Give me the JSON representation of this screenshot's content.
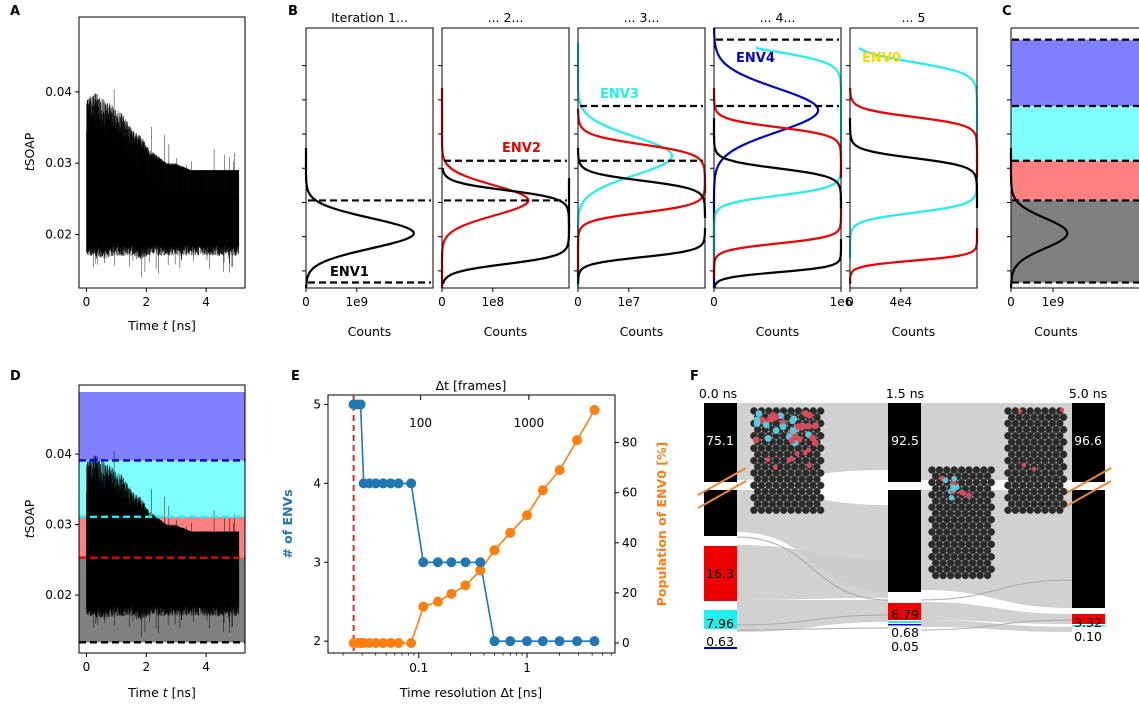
{
  "panel_labels": {
    "A": "A",
    "B": "B",
    "C": "C",
    "D": "D",
    "E": "E",
    "F": "F"
  },
  "colors": {
    "ENV0": "#FFD700",
    "ENV1": "#000000",
    "ENV2": "#EE0000",
    "ENV3": "#22EEEE",
    "ENV4": "#0000CC",
    "band_env4": "#8080FF",
    "band_env3": "#80FFFF",
    "band_env2": "#FF8080",
    "band_env1": "#808080",
    "hist": "#999999",
    "blue_series": "#1F77B4",
    "orange_series": "#FF7F0E",
    "dashed_red": "#EE2222",
    "slash": "#E8893A",
    "flow": "#CCCCCC"
  },
  "chart_data": [
    {
      "panel": "A",
      "type": "line",
      "xlabel_pre": "Time ",
      "xlabel_var": "t",
      "xlabel_post": " [ns]",
      "ylabel_var": "t",
      "ylabel_post": "SOAP",
      "xlim": [
        -0.25,
        5.3
      ],
      "ylim": [
        0.0125,
        0.0505
      ],
      "xticks": [
        0,
        2,
        4
      ],
      "xtick_labels": [
        "0",
        "2",
        "4"
      ],
      "yticks": [
        0.02,
        0.03,
        0.04
      ],
      "ytick_labels": [
        "0.02",
        "0.03",
        "0.04"
      ],
      "signal": {
        "t": [
          0,
          0.3,
          0.6,
          0.9,
          1.2,
          1.5,
          1.8,
          2.1,
          2.4,
          2.7,
          3,
          3.5,
          4,
          4.5,
          5.1
        ],
        "upper": [
          0.039,
          0.04,
          0.039,
          0.038,
          0.037,
          0.035,
          0.034,
          0.032,
          0.031,
          0.03,
          0.03,
          0.029,
          0.029,
          0.029,
          0.029
        ],
        "lower": [
          0.017,
          0.017,
          0.0165,
          0.017,
          0.017,
          0.017,
          0.0165,
          0.017,
          0.017,
          0.017,
          0.017,
          0.017,
          0.017,
          0.017,
          0.017
        ]
      }
    },
    {
      "panel": "B",
      "type": "histogram",
      "xlabel": "Counts",
      "ylim": [
        0.0125,
        0.0505
      ],
      "subplots": [
        {
          "title": "Iteration 1...",
          "xtick_labels": [
            "0",
            "1e9"
          ],
          "env_label": "ENV1",
          "env_color": "ENV1",
          "dashes": [
            0.0253,
            0.0133
          ]
        },
        {
          "title": "... 2...",
          "xtick_labels": [
            "0",
            "1e8"
          ],
          "env_label": "ENV2",
          "env_color": "ENV2",
          "dashes": [
            0.0311,
            0.0253
          ]
        },
        {
          "title": "... 3...",
          "xtick_labels": [
            "0",
            "1e7"
          ],
          "env_label": "ENV3",
          "env_color": "ENV3",
          "dashes": [
            0.0391,
            0.0311
          ]
        },
        {
          "title": "... 4...",
          "xtick_labels": [
            "0",
            "1e6"
          ],
          "env_label": "ENV4",
          "env_color": "ENV4",
          "dashes": [
            0.0488,
            0.0391
          ]
        },
        {
          "title": "... 5",
          "xtick_labels": [
            "0",
            "4e4"
          ],
          "env_label": "ENV0",
          "env_color": "ENV0",
          "dashes": []
        }
      ]
    },
    {
      "panel": "C",
      "type": "histogram",
      "xlabel": "Counts",
      "xtick_labels": [
        "0",
        "1e9"
      ],
      "bands": [
        [
          0.0391,
          0.0488,
          "band_env4"
        ],
        [
          0.0311,
          0.0391,
          "band_env3"
        ],
        [
          0.0253,
          0.0311,
          "band_env2"
        ],
        [
          0.0133,
          0.0253,
          "band_env1"
        ]
      ],
      "dashes": [
        0.0488,
        0.0391,
        0.0311,
        0.0253,
        0.0133
      ]
    },
    {
      "panel": "D",
      "type": "line",
      "xlabel_pre": "Time ",
      "xlabel_var": "t",
      "xlabel_post": " [ns]",
      "ylabel_var": "t",
      "ylabel_post": "SOAP",
      "xticks": [
        0,
        2,
        4
      ],
      "xtick_labels": [
        "0",
        "2",
        "4"
      ],
      "yticks": [
        0.02,
        0.03,
        0.04
      ],
      "ytick_labels": [
        "0.02",
        "0.03",
        "0.04"
      ],
      "bands": [
        [
          0.0391,
          0.0488,
          "band_env4"
        ],
        [
          0.0311,
          0.0391,
          "band_env3"
        ],
        [
          0.0253,
          0.0311,
          "band_env2"
        ],
        [
          0.0133,
          0.0253,
          "band_env1"
        ]
      ],
      "dashes": [
        [
          "0.0391",
          "ENV4"
        ],
        [
          "0.0311",
          "ENV3"
        ],
        [
          "0.0253",
          "ENV2"
        ],
        [
          "0.0133",
          "ENV1"
        ]
      ]
    },
    {
      "panel": "E",
      "type": "line",
      "xscale": "log",
      "xlabel": "Time resolution Δt [ns]",
      "top_xlabel": "Δt [frames]",
      "ylabel_left": "# of ENVs",
      "ylabel_right": "Population of ENV0 [%]",
      "xlim": [
        0.0145,
        6.5
      ],
      "ylim_left": [
        1.85,
        5.12
      ],
      "ylim_right": [
        -4,
        99
      ],
      "xticks": [
        0.1,
        1
      ],
      "xtick_labels": [
        "0.1",
        "1"
      ],
      "top_ticks": [
        100,
        1000
      ],
      "top_tick_labels": [
        "100",
        "1000"
      ],
      "yticks_left": [
        2,
        3,
        4,
        5
      ],
      "yticks_right": [
        0,
        20,
        40,
        60,
        80
      ],
      "vline_x": 0.025,
      "x": [
        0.025,
        0.027,
        0.029,
        0.031,
        0.035,
        0.04,
        0.047,
        0.055,
        0.065,
        0.085,
        0.11,
        0.15,
        0.2,
        0.27,
        0.37,
        0.5,
        0.7,
        1.0,
        1.4,
        2.0,
        2.9,
        4.2
      ],
      "series": [
        {
          "name": "# of ENVs",
          "values": [
            5,
            5,
            5,
            4,
            4,
            4,
            4,
            4,
            4,
            4,
            3,
            3,
            3,
            3,
            3,
            2,
            2,
            2,
            2,
            2,
            2,
            2
          ]
        },
        {
          "name": "Population of ENV0 [%]",
          "values": [
            0,
            0,
            0,
            0,
            0,
            0,
            0,
            0,
            0,
            0,
            14.5,
            16.5,
            19.6,
            23,
            29,
            37,
            44,
            51,
            61,
            69,
            81,
            93
          ]
        }
      ]
    },
    {
      "panel": "F",
      "type": "sankey",
      "times": [
        "0.0 ns",
        "1.5 ns",
        "5.0 ns"
      ],
      "columns": [
        {
          "ENV1": 75.1,
          "ENV2": 16.3,
          "ENV3": 7.96,
          "ENV4": 0.63
        },
        {
          "ENV1": 92.5,
          "ENV2": 6.79,
          "ENV3": 0.68,
          "ENV4": 0.05
        },
        {
          "ENV1": 96.6,
          "ENV2": 3.32,
          "ENV3": 0.1
        }
      ],
      "labels": [
        [
          "75.1",
          "16.3",
          "7.96",
          "0.63"
        ],
        [
          "92.5",
          "6.79",
          "0.68",
          "0.05"
        ],
        [
          "96.6",
          "3.32",
          "0.10"
        ]
      ]
    }
  ]
}
